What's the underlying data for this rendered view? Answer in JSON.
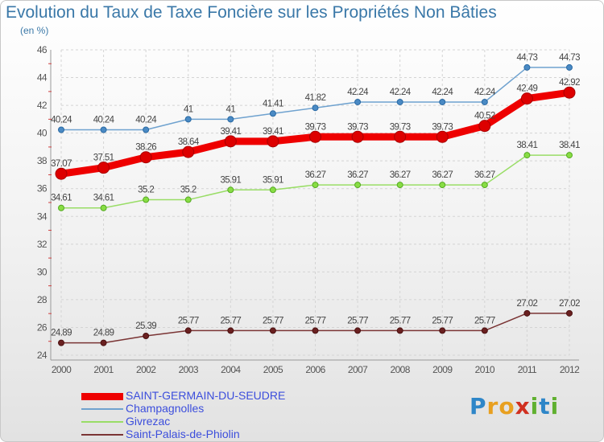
{
  "title": "Evolution du Taux de Taxe Foncière sur les Propriétés Non Bâties",
  "unit_label": "(en %)",
  "logo_text": "Proxiti",
  "chart_data": {
    "type": "line",
    "x": [
      "2000",
      "2001",
      "2002",
      "2003",
      "2004",
      "2005",
      "2006",
      "2007",
      "2008",
      "2009",
      "2010",
      "2011",
      "2012"
    ],
    "ylim": [
      24,
      46
    ],
    "yticks": [
      24,
      26,
      28,
      30,
      32,
      34,
      36,
      38,
      40,
      42,
      44,
      46
    ],
    "grid": true,
    "legend_position": "bottom-left",
    "series": [
      {
        "name": "SAINT-GERMAIN-DU-SEUDRE",
        "color": "#ee0000",
        "values": [
          37.07,
          37.51,
          38.26,
          38.64,
          39.41,
          39.41,
          39.73,
          39.73,
          39.73,
          39.73,
          40.52,
          42.49,
          42.92
        ],
        "labels": [
          "37.07",
          "37.51",
          "38.26",
          "38.64",
          "39.41",
          "39.41",
          "39.73",
          "39.73",
          "39.73",
          "39.73",
          "40.52",
          "42.49",
          "42.92"
        ]
      },
      {
        "name": "Champagnolles",
        "color": "#6fa2cf",
        "values": [
          40.24,
          40.24,
          40.24,
          41,
          41,
          41.41,
          41.82,
          42.24,
          42.24,
          42.24,
          42.24,
          44.73,
          44.73
        ],
        "labels": [
          "40.24",
          "40.24",
          "40.24",
          "41",
          "41",
          "41.41",
          "41.82",
          "42.24",
          "42.24",
          "42.24",
          "42.24",
          "44.73",
          "44.73"
        ]
      },
      {
        "name": "Givrezac",
        "color": "#99dd66",
        "values": [
          34.61,
          34.61,
          35.2,
          35.2,
          35.91,
          35.91,
          36.27,
          36.27,
          36.27,
          36.27,
          36.27,
          38.41,
          38.41
        ],
        "labels": [
          "34.61",
          "34.61",
          "35.2",
          "35.2",
          "35.91",
          "35.91",
          "36.27",
          "36.27",
          "36.27",
          "36.27",
          "36.27",
          "38.41",
          "38.41"
        ]
      },
      {
        "name": "Saint-Palais-de-Phiolin",
        "color": "#7a3434",
        "values": [
          24.89,
          24.89,
          25.39,
          25.77,
          25.77,
          25.77,
          25.77,
          25.77,
          25.77,
          25.77,
          25.77,
          27.02,
          27.02
        ],
        "labels": [
          "24.89",
          "24.89",
          "25.39",
          "25.77",
          "25.77",
          "25.77",
          "25.77",
          "25.77",
          "25.77",
          "25.77",
          "25.77",
          "27.02",
          "27.02"
        ]
      }
    ]
  }
}
